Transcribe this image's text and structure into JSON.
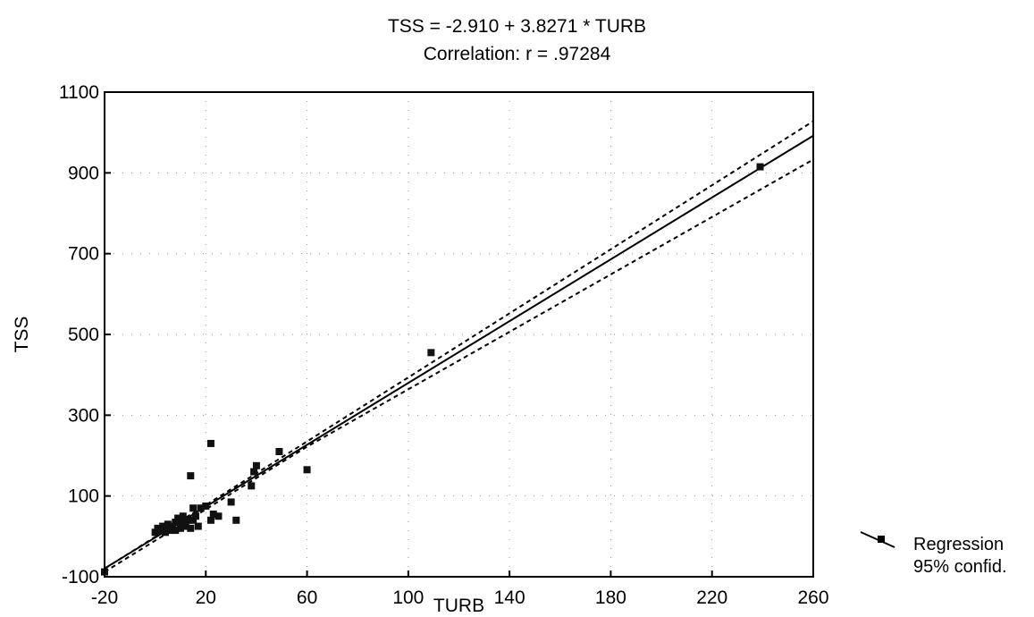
{
  "chart_data": {
    "type": "scatter",
    "title": "TSS = -2.910 + 3.8271 * TURB",
    "subtitle": "Correlation: r = .97284",
    "xlabel": "TURB",
    "ylabel": "TSS",
    "xlim": [
      -20,
      260
    ],
    "ylim": [
      -100,
      1100
    ],
    "xticks": [
      -20,
      20,
      60,
      100,
      140,
      180,
      220,
      260
    ],
    "yticks": [
      -100,
      100,
      300,
      500,
      700,
      900,
      1100
    ],
    "grid": "dotted",
    "legend": {
      "position": "right",
      "entries": [
        "Regression",
        "95% confid."
      ]
    },
    "regression": {
      "intercept": -2.91,
      "slope": 3.8271
    },
    "confidence_band": {
      "x": [
        -20,
        60,
        260
      ],
      "lower": [
        -88,
        222,
        933
      ],
      "upper": [
        -80,
        235,
        1028
      ]
    },
    "points": [
      {
        "x": -20,
        "y": -88
      },
      {
        "x": 0,
        "y": 10
      },
      {
        "x": 1,
        "y": 20
      },
      {
        "x": 2,
        "y": 15
      },
      {
        "x": 3,
        "y": 25
      },
      {
        "x": 4,
        "y": 10
      },
      {
        "x": 5,
        "y": 20
      },
      {
        "x": 5,
        "y": 30
      },
      {
        "x": 6,
        "y": 15
      },
      {
        "x": 7,
        "y": 25
      },
      {
        "x": 8,
        "y": 35
      },
      {
        "x": 8,
        "y": 15
      },
      {
        "x": 9,
        "y": 45
      },
      {
        "x": 10,
        "y": 30
      },
      {
        "x": 10,
        "y": 20
      },
      {
        "x": 11,
        "y": 50
      },
      {
        "x": 12,
        "y": 35
      },
      {
        "x": 12,
        "y": 25
      },
      {
        "x": 13,
        "y": 40
      },
      {
        "x": 14,
        "y": 20
      },
      {
        "x": 14,
        "y": 150
      },
      {
        "x": 15,
        "y": 70
      },
      {
        "x": 15,
        "y": 40
      },
      {
        "x": 16,
        "y": 50
      },
      {
        "x": 17,
        "y": 25
      },
      {
        "x": 18,
        "y": 70
      },
      {
        "x": 20,
        "y": 75
      },
      {
        "x": 22,
        "y": 40
      },
      {
        "x": 22,
        "y": 230
      },
      {
        "x": 23,
        "y": 55
      },
      {
        "x": 25,
        "y": 50
      },
      {
        "x": 30,
        "y": 85
      },
      {
        "x": 32,
        "y": 40
      },
      {
        "x": 38,
        "y": 125
      },
      {
        "x": 39,
        "y": 160
      },
      {
        "x": 40,
        "y": 175
      },
      {
        "x": 49,
        "y": 210
      },
      {
        "x": 60,
        "y": 165
      },
      {
        "x": 109,
        "y": 455
      },
      {
        "x": 239,
        "y": 915
      }
    ]
  }
}
